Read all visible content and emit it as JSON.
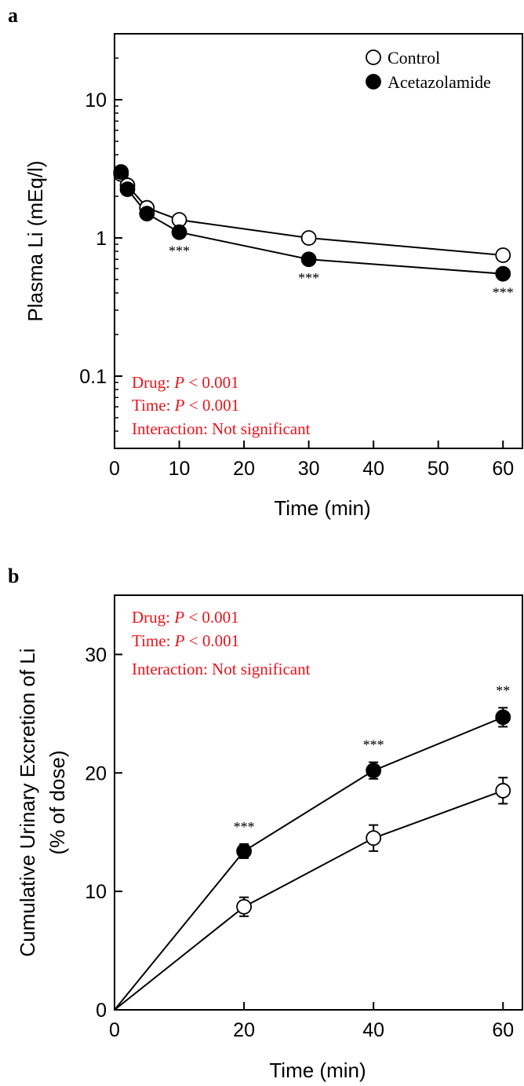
{
  "chart_data": [
    {
      "panel_label": "a",
      "type": "line",
      "xlabel": "Time (min)",
      "ylabel": "Plasma Li (mEq/l)",
      "xlim": [
        0,
        63
      ],
      "ylim": [
        0.03,
        30
      ],
      "yscale": "log",
      "xticks": [
        0,
        10,
        20,
        30,
        40,
        50,
        60
      ],
      "yticks": [
        0.1,
        1,
        10
      ],
      "ytick_labels": [
        "0.1",
        "1",
        "10"
      ],
      "legend": {
        "position": "top-right",
        "entries": [
          {
            "label": "Control",
            "marker": "open-circle"
          },
          {
            "label": "Acetazolamide",
            "marker": "filled-circle"
          }
        ]
      },
      "series": [
        {
          "name": "Control",
          "marker": "open",
          "x": [
            1,
            2,
            5,
            10,
            30,
            60
          ],
          "y": [
            2.9,
            2.4,
            1.65,
            1.35,
            1.0,
            0.75
          ]
        },
        {
          "name": "Acetazolamide",
          "marker": "filled",
          "x": [
            1,
            2,
            5,
            10,
            30,
            60
          ],
          "y": [
            3.0,
            2.25,
            1.5,
            1.1,
            0.7,
            0.55
          ]
        }
      ],
      "significance": [
        {
          "x": 10,
          "y": 1.1,
          "label": "***"
        },
        {
          "x": 30,
          "y": 0.7,
          "label": "***"
        },
        {
          "x": 60,
          "y": 0.55,
          "label": "***"
        }
      ],
      "stats": {
        "anchor": "bottom-left",
        "lines": [
          {
            "prefix": "Drug: ",
            "p": "P",
            "suffix": " < 0.001"
          },
          {
            "prefix": "Time: ",
            "p": "P",
            "suffix": " < 0.001"
          },
          {
            "prefix": "Interaction: Not significant",
            "p": "",
            "suffix": ""
          }
        ]
      }
    },
    {
      "panel_label": "b",
      "type": "line",
      "xlabel": "Time (min)",
      "ylabel": "Cumulative Urinary Excretion of Li",
      "ylabel2": "(% of dose)",
      "xlim": [
        0,
        63
      ],
      "ylim": [
        0,
        35
      ],
      "xticks": [
        0,
        20,
        40,
        60
      ],
      "yticks": [
        0,
        10,
        20,
        30
      ],
      "series": [
        {
          "name": "Control",
          "marker": "open",
          "x": [
            0,
            20,
            40,
            60
          ],
          "y": [
            0,
            8.7,
            14.5,
            18.5
          ],
          "err": [
            0,
            0.8,
            1.1,
            1.1
          ]
        },
        {
          "name": "Acetazolamide",
          "marker": "filled",
          "x": [
            0,
            20,
            40,
            60
          ],
          "y": [
            0,
            13.4,
            20.2,
            24.7
          ],
          "err": [
            0,
            0.6,
            0.7,
            0.8
          ]
        }
      ],
      "significance": [
        {
          "x": 20,
          "y": 14.0,
          "label": "***"
        },
        {
          "x": 40,
          "y": 20.9,
          "label": "***"
        },
        {
          "x": 60,
          "y": 25.5,
          "label": "**"
        }
      ],
      "stats": {
        "anchor": "top-left",
        "lines": [
          {
            "prefix": "Drug: ",
            "p": "P",
            "suffix": " < 0.001"
          },
          {
            "prefix": "Time: ",
            "p": "P",
            "suffix": " < 0.001"
          },
          {
            "prefix": "Interaction: Not significant",
            "p": "",
            "suffix": ""
          }
        ]
      }
    }
  ],
  "colors": {
    "axis": "#000000",
    "stats_text": "#e8141c",
    "marker_fill": "#000000",
    "marker_open": "#ffffff"
  }
}
